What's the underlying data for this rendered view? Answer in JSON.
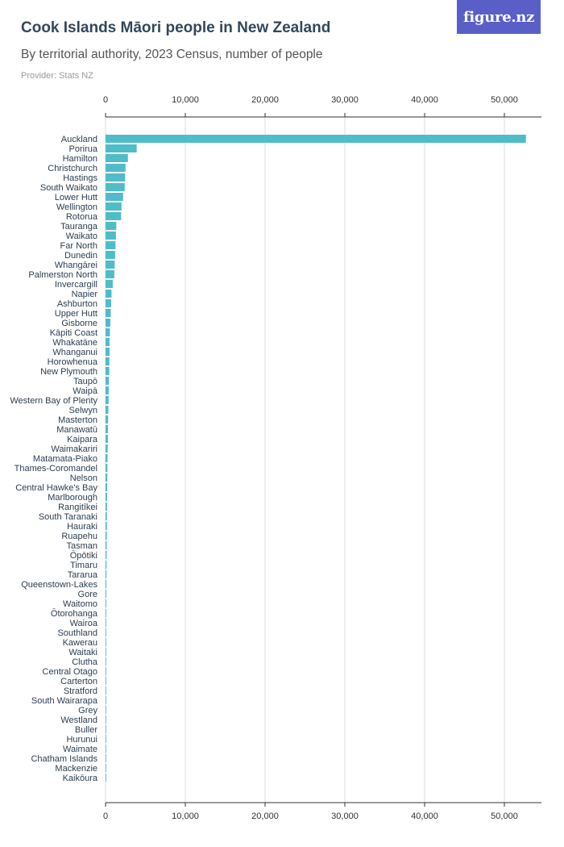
{
  "header": {
    "title": "Cook Islands Māori people in New Zealand",
    "subtitle": "By territorial authority, 2023 Census, number of people",
    "provider": "Provider: Stats NZ",
    "logo_text": "figure.nz"
  },
  "colors": {
    "bar": "#4fbcc9",
    "grid": "#dddddd",
    "axis": "#333333"
  },
  "chart_data": {
    "type": "bar",
    "orientation": "horizontal",
    "title": "Cook Islands Māori people in New Zealand",
    "xlabel": "",
    "ylabel": "",
    "xlim": [
      0,
      55000
    ],
    "xticks": [
      0,
      10000,
      20000,
      30000,
      40000,
      50000
    ],
    "xtick_labels": [
      "0",
      "10,000",
      "20,000",
      "30,000",
      "40,000",
      "50,000"
    ],
    "categories": [
      "Auckland",
      "Porirua",
      "Hamilton",
      "Christchurch",
      "Hastings",
      "South Waikato",
      "Lower Hutt",
      "Wellington",
      "Rotorua",
      "Tauranga",
      "Waikato",
      "Far North",
      "Dunedin",
      "Whangārei",
      "Palmerston North",
      "Invercargill",
      "Napier",
      "Ashburton",
      "Upper Hutt",
      "Gisborne",
      "Kāpiti Coast",
      "Whakatāne",
      "Whanganui",
      "Horowhenua",
      "New Plymouth",
      "Taupō",
      "Waipā",
      "Western Bay of Plenty",
      "Selwyn",
      "Masterton",
      "Manawatū",
      "Kaipara",
      "Waimakariri",
      "Matamata-Piako",
      "Thames-Coromandel",
      "Nelson",
      "Central Hawke's Bay",
      "Marlborough",
      "Rangitīkei",
      "South Taranaki",
      "Hauraki",
      "Ruapehu",
      "Tasman",
      "Ōpōtiki",
      "Timaru",
      "Tararua",
      "Queenstown-Lakes",
      "Gore",
      "Waitomo",
      "Ōtorohanga",
      "Wairoa",
      "Southland",
      "Kawerau",
      "Waitaki",
      "Clutha",
      "Central Otago",
      "Carterton",
      "Stratford",
      "South Wairarapa",
      "Grey",
      "Westland",
      "Buller",
      "Hurunui",
      "Waimate",
      "Chatham Islands",
      "Mackenzie",
      "Kaikōura"
    ],
    "values": [
      52700,
      3900,
      2800,
      2500,
      2450,
      2400,
      2200,
      2000,
      1950,
      1350,
      1300,
      1250,
      1200,
      1150,
      1100,
      900,
      750,
      700,
      650,
      600,
      550,
      500,
      500,
      480,
      470,
      420,
      400,
      380,
      350,
      320,
      300,
      290,
      270,
      250,
      230,
      220,
      200,
      190,
      180,
      170,
      160,
      150,
      140,
      130,
      120,
      110,
      100,
      95,
      90,
      85,
      80,
      75,
      70,
      65,
      60,
      55,
      50,
      45,
      40,
      35,
      30,
      25,
      20,
      15,
      10,
      8,
      5
    ]
  }
}
